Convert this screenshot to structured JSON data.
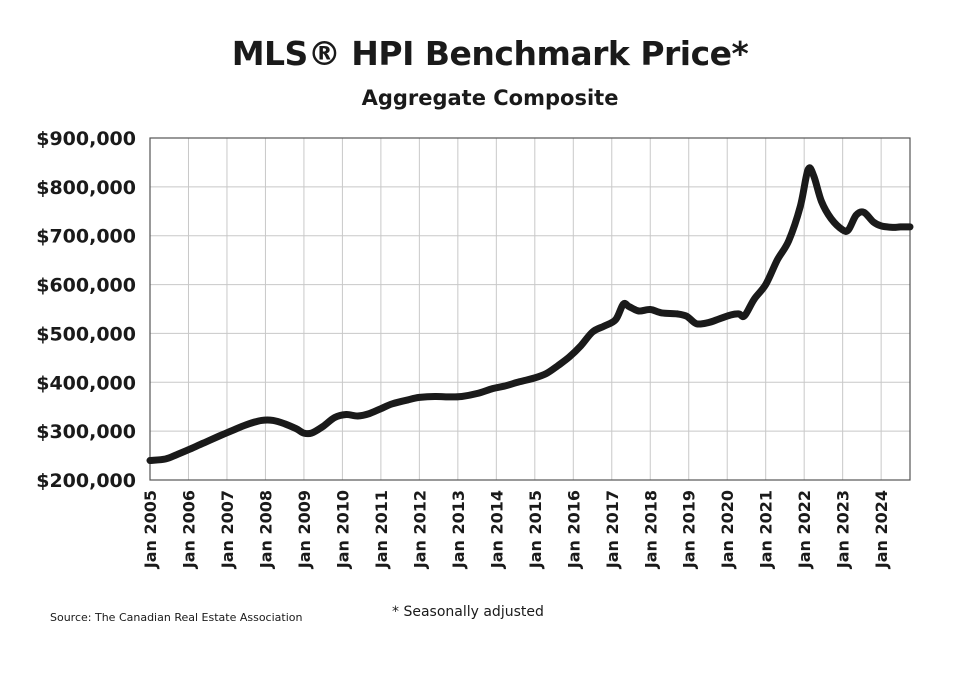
{
  "chart_data": {
    "type": "line",
    "title": "MLS® HPI Benchmark Price*",
    "subtitle": "Aggregate Composite",
    "ylim": [
      200000,
      900000
    ],
    "yticks": [
      900000,
      800000,
      700000,
      600000,
      500000,
      400000,
      300000,
      200000
    ],
    "ytick_labels": [
      "$900,000",
      "$800,000",
      "$700,000",
      "$600,000",
      "$500,000",
      "$400,000",
      "$300,000",
      "$200,000"
    ],
    "xlim": [
      2005.0,
      2024.75
    ],
    "xticks": [
      2005,
      2006,
      2007,
      2008,
      2009,
      2010,
      2011,
      2012,
      2013,
      2014,
      2015,
      2016,
      2017,
      2018,
      2019,
      2020,
      2021,
      2022,
      2023,
      2024
    ],
    "xtick_labels": [
      "Jan 2005",
      "Jan 2006",
      "Jan 2007",
      "Jan 2008",
      "Jan 2009",
      "Jan 2010",
      "Jan 2011",
      "Jan 2012",
      "Jan 2013",
      "Jan 2014",
      "Jan 2015",
      "Jan 2016",
      "Jan 2017",
      "Jan 2018",
      "Jan 2019",
      "Jan 2020",
      "Jan 2021",
      "Jan 2022",
      "Jan 2023",
      "Jan 2024"
    ],
    "grid": true,
    "series": [
      {
        "color": "#1a1a1a",
        "x": [
          2005.0,
          2005.4,
          2005.7,
          2006.0,
          2006.4,
          2006.8,
          2007.1,
          2007.5,
          2007.9,
          2008.2,
          2008.5,
          2008.8,
          2009.0,
          2009.2,
          2009.5,
          2009.8,
          2010.1,
          2010.4,
          2010.7,
          2011.0,
          2011.3,
          2011.7,
          2012.0,
          2012.4,
          2012.8,
          2013.1,
          2013.5,
          2013.9,
          2014.2,
          2014.6,
          2015.0,
          2015.3,
          2015.6,
          2015.9,
          2016.2,
          2016.5,
          2016.8,
          2017.1,
          2017.3,
          2017.45,
          2017.7,
          2018.0,
          2018.3,
          2018.7,
          2018.95,
          2019.2,
          2019.5,
          2019.8,
          2020.1,
          2020.3,
          2020.45,
          2020.7,
          2021.0,
          2021.3,
          2021.6,
          2021.9,
          2022.1,
          2022.25,
          2022.45,
          2022.7,
          2023.0,
          2023.15,
          2023.35,
          2023.55,
          2023.8,
          2024.0,
          2024.3,
          2024.5,
          2024.75
        ],
        "y": [
          240000,
          243000,
          252000,
          262000,
          276000,
          290000,
          300000,
          313000,
          322000,
          322000,
          315000,
          305000,
          296000,
          296000,
          310000,
          328000,
          334000,
          331000,
          336000,
          346000,
          356000,
          364000,
          369000,
          371000,
          370000,
          371000,
          377000,
          387000,
          392000,
          401000,
          409000,
          418000,
          434000,
          452000,
          475000,
          503000,
          515000,
          528000,
          560000,
          555000,
          546000,
          549000,
          542000,
          540000,
          535000,
          520000,
          522000,
          530000,
          538000,
          540000,
          536000,
          570000,
          600000,
          650000,
          690000,
          760000,
          835000,
          822000,
          770000,
          735000,
          712000,
          712000,
          742000,
          748000,
          728000,
          720000,
          717000,
          718000,
          718000
        ]
      }
    ]
  },
  "source_text": "Source: The Canadian Real Estate Association",
  "footnote_text": "* Seasonally adjusted"
}
